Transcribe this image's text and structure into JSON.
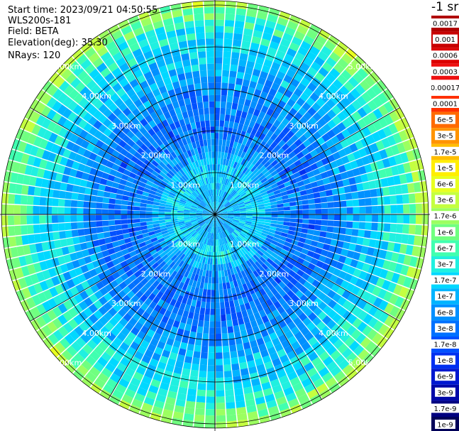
{
  "header": {
    "start_time": "Start time: 2023/09/21 04:50:55",
    "instrument": "WLS200s-181",
    "field": "Field: BETA",
    "elevation": "Elevation(deg): 35.30",
    "nrays": "NRays: 120"
  },
  "colorbar": {
    "unit_title": "-1 sr",
    "levels": [
      {
        "label": "0.0017",
        "color": "#b00000"
      },
      {
        "label": "0.001",
        "color": "#c80000"
      },
      {
        "label": "0.0006",
        "color": "#dc0000"
      },
      {
        "label": "0.0003",
        "color": "#ee1010"
      },
      {
        "label": "0.00017",
        "color": "#ffffff"
      },
      {
        "label": "0.0001",
        "color": "#ff3000"
      },
      {
        "label": "6e-5",
        "color": "#ff6a00"
      },
      {
        "label": "3e-5",
        "color": "#ff9400"
      },
      {
        "label": "1.7e-5",
        "color": "#ffbe00"
      },
      {
        "label": "1e-5",
        "color": "#ffee00"
      },
      {
        "label": "6e-6",
        "color": "#e8ff20"
      },
      {
        "label": "3e-6",
        "color": "#c4ff40"
      },
      {
        "label": "1.7e-6",
        "color": "#9cff60"
      },
      {
        "label": "1e-6",
        "color": "#70ff80"
      },
      {
        "label": "6e-7",
        "color": "#40ffb0"
      },
      {
        "label": "3e-7",
        "color": "#20f0e0"
      },
      {
        "label": "1.7e-7",
        "color": "#00d8ff"
      },
      {
        "label": "1e-7",
        "color": "#00b4ff"
      },
      {
        "label": "6e-8",
        "color": "#0090ff"
      },
      {
        "label": "3e-8",
        "color": "#0070ff"
      },
      {
        "label": "1.7e-8",
        "color": "#0050ff"
      },
      {
        "label": "1e-8",
        "color": "#0030f0"
      },
      {
        "label": "6e-9",
        "color": "#0018d0"
      },
      {
        "label": "3e-9",
        "color": "#0008a8"
      },
      {
        "label": "1.7e-9",
        "color": "#000080"
      },
      {
        "label": "1e-9",
        "color": "#000058"
      }
    ]
  },
  "chart_data": {
    "type": "heatmap",
    "projection": "polar-ppi",
    "title": "",
    "nrays": 120,
    "max_range_km": 5.1,
    "range_rings_km": [
      1,
      2,
      3,
      4,
      5
    ],
    "ring_labels": [
      "1.00km",
      "2.00km",
      "3.00km",
      "4.00km",
      "5.00km"
    ],
    "spokes_deg": [
      0,
      30,
      60,
      90,
      120,
      150,
      180,
      210,
      240,
      270,
      300,
      330
    ],
    "radial_profile": [
      {
        "range_km": 0.0,
        "level": 17
      },
      {
        "range_km": 0.5,
        "level": 17
      },
      {
        "range_km": 1.0,
        "level": 16
      },
      {
        "range_km": 1.5,
        "level": 18
      },
      {
        "range_km": 2.0,
        "level": 19
      },
      {
        "range_km": 2.5,
        "level": 19
      },
      {
        "range_km": 3.0,
        "level": 18
      },
      {
        "range_km": 3.5,
        "level": 17
      },
      {
        "range_km": 4.0,
        "level": 16
      },
      {
        "range_km": 4.5,
        "level": 15
      },
      {
        "range_km": 5.0,
        "level": 12
      }
    ]
  }
}
